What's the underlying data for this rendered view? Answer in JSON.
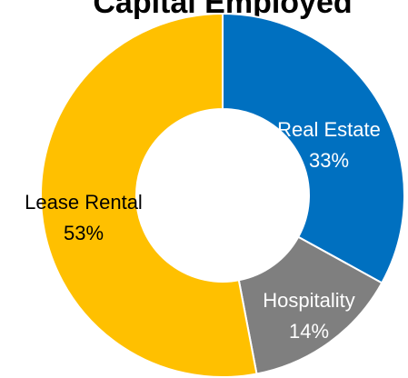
{
  "chart_data": {
    "type": "pie",
    "title": "Capital Employed",
    "categories": [
      "Real Estate",
      "Hospitality",
      "Lease Rental"
    ],
    "values": [
      33,
      14,
      53
    ],
    "value_labels": [
      "33%",
      "14%",
      "53%"
    ],
    "colors": [
      "#0070c0",
      "#7f7f7f",
      "#ffc000"
    ],
    "donut": true
  }
}
